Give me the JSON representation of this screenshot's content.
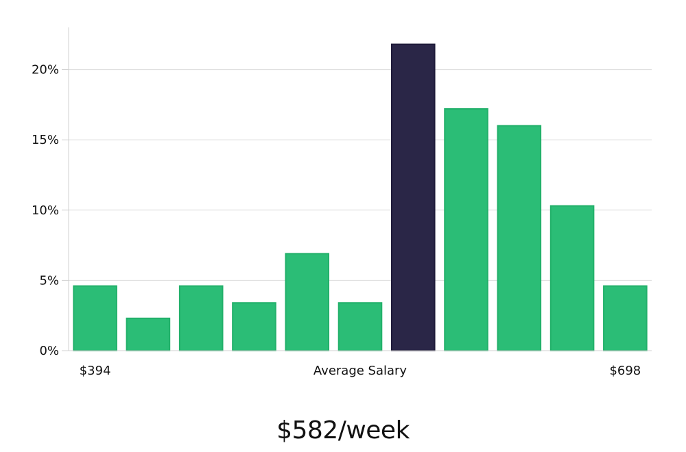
{
  "chart_data": {
    "type": "bar",
    "values": [
      4.6,
      2.3,
      4.6,
      3.4,
      6.9,
      3.4,
      21.8,
      17.2,
      16.0,
      10.3,
      4.6
    ],
    "highlight_index": 6,
    "ylim": [
      0,
      23
    ],
    "yticks": [
      0,
      5,
      10,
      15,
      20
    ],
    "ytick_labels": [
      "0%",
      "5%",
      "10%",
      "15%",
      "20%"
    ],
    "x_min_label": "$394",
    "x_max_label": "$698",
    "xlabel": "Average Salary",
    "grid": true,
    "colors": {
      "bar": "#2bbd76",
      "bar_stroke": "#22b06a",
      "highlight": "#2a2647",
      "highlight_stroke": "#1f1b3a"
    }
  },
  "summary": "$582/week"
}
